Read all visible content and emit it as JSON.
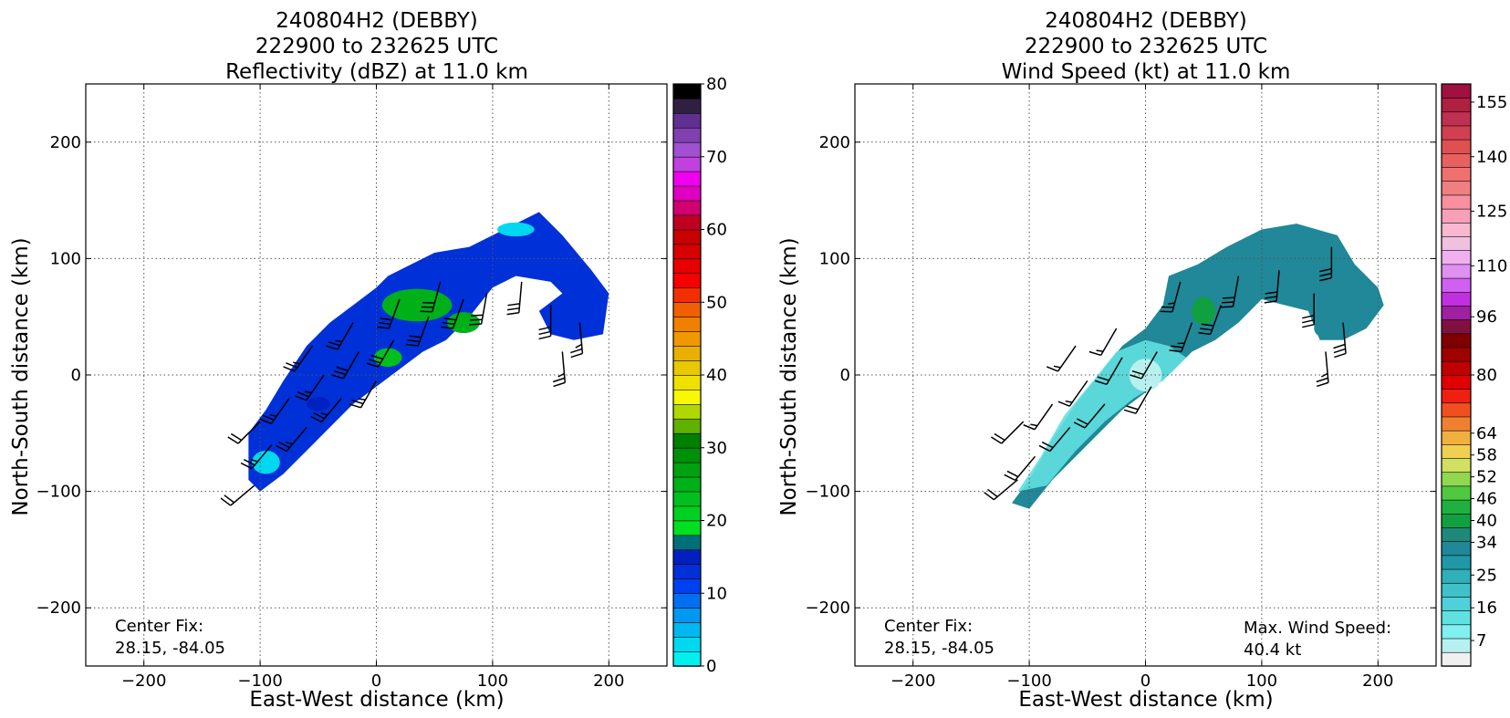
{
  "chart_data": [
    {
      "type": "heatmap",
      "title_lines": [
        "240804H2 (DEBBY)",
        "222900 to 232625 UTC",
        "Reflectivity (dBZ) at 11.0 km"
      ],
      "xlabel": "East-West distance (km)",
      "ylabel": "North-South distance (km)",
      "xlim": [
        -250,
        250
      ],
      "ylim": [
        -250,
        250
      ],
      "x_ticks": [
        -200,
        -100,
        0,
        100,
        200
      ],
      "y_ticks": [
        -200,
        -100,
        0,
        100,
        200
      ],
      "x_tick_labels": [
        "−200",
        "−100",
        "0",
        "100",
        "200"
      ],
      "y_tick_labels": [
        "−200",
        "−100",
        "0",
        "100",
        "200"
      ],
      "grid": true,
      "annotation_lines": [
        "Center Fix:",
        "28.15, -84.05"
      ],
      "colorbar": {
        "range": [
          0,
          80
        ],
        "tick_values": [
          0,
          10,
          20,
          30,
          40,
          50,
          60,
          70,
          80
        ],
        "tick_labels": [
          "0",
          "10",
          "20",
          "30",
          "40",
          "50",
          "60",
          "70",
          "80"
        ],
        "colors": [
          "#00f0f0",
          "#00d8f0",
          "#00b8f0",
          "#0098f0",
          "#0070f0",
          "#0040f0",
          "#0030d8",
          "#0020c0",
          "#007078",
          "#00e020",
          "#00d020",
          "#00c020",
          "#00b018",
          "#00a010",
          "#009008",
          "#008000",
          "#60b000",
          "#b0d800",
          "#f8f800",
          "#f0e000",
          "#e8c800",
          "#e8b000",
          "#f09800",
          "#f08000",
          "#f06000",
          "#f03000",
          "#f80000",
          "#e80000",
          "#d80000",
          "#c80000",
          "#c00020",
          "#d00070",
          "#e000c0",
          "#f000f0",
          "#c040e0",
          "#a050d0",
          "#8040b0",
          "#603090",
          "#302040",
          "#000000"
        ]
      },
      "swath": [
        {
          "x": [
            -110,
            -95,
            -80,
            -60,
            -40,
            -20,
            0,
            10,
            30,
            50,
            80,
            110,
            140,
            160,
            185,
            200,
            195,
            170,
            150,
            140,
            160,
            150,
            120,
            100,
            80,
            60,
            40,
            20,
            0,
            -20,
            -40,
            -60,
            -80,
            -100,
            -110
          ],
          "y": [
            -50,
            -30,
            -5,
            25,
            45,
            60,
            75,
            85,
            95,
            105,
            110,
            125,
            140,
            120,
            90,
            70,
            35,
            30,
            35,
            55,
            70,
            80,
            85,
            75,
            50,
            30,
            20,
            5,
            -10,
            -25,
            -45,
            -65,
            -85,
            -100,
            -90
          ]
        }
      ],
      "cells": [
        {
          "x": 35,
          "y": 60,
          "rx": 30,
          "ry": 14,
          "value": 25
        },
        {
          "x": 75,
          "y": 45,
          "rx": 14,
          "ry": 9,
          "value": 24
        },
        {
          "x": 10,
          "y": 15,
          "rx": 12,
          "ry": 8,
          "value": 22
        },
        {
          "x": -50,
          "y": -25,
          "rx": 10,
          "ry": 6,
          "value": 14
        },
        {
          "x": 120,
          "y": 125,
          "rx": 16,
          "ry": 6,
          "value": 2
        },
        {
          "x": -95,
          "y": -75,
          "rx": 12,
          "ry": 10,
          "value": 3
        }
      ],
      "barbs": [
        {
          "x": -90,
          "y": -60,
          "speed": 25,
          "dir": 220
        },
        {
          "x": -60,
          "y": -45,
          "speed": 25,
          "dir": 220
        },
        {
          "x": -30,
          "y": -20,
          "speed": 25,
          "dir": 220
        },
        {
          "x": -75,
          "y": -20,
          "speed": 25,
          "dir": 215
        },
        {
          "x": -45,
          "y": 0,
          "speed": 25,
          "dir": 215
        },
        {
          "x": -15,
          "y": 20,
          "speed": 30,
          "dir": 210
        },
        {
          "x": 15,
          "y": 30,
          "speed": 30,
          "dir": 210
        },
        {
          "x": 45,
          "y": 50,
          "speed": 30,
          "dir": 200
        },
        {
          "x": 75,
          "y": 65,
          "speed": 30,
          "dir": 200
        },
        {
          "x": -55,
          "y": 25,
          "speed": 25,
          "dir": 215
        },
        {
          "x": -20,
          "y": 45,
          "speed": 25,
          "dir": 210
        },
        {
          "x": 20,
          "y": 65,
          "speed": 30,
          "dir": 200
        },
        {
          "x": 55,
          "y": 80,
          "speed": 30,
          "dir": 195
        },
        {
          "x": 95,
          "y": 70,
          "speed": 30,
          "dir": 190
        },
        {
          "x": 125,
          "y": 80,
          "speed": 30,
          "dir": 185
        },
        {
          "x": 150,
          "y": 60,
          "speed": 30,
          "dir": 180
        },
        {
          "x": 175,
          "y": 45,
          "speed": 25,
          "dir": 175
        },
        {
          "x": 160,
          "y": 20,
          "speed": 25,
          "dir": 175
        },
        {
          "x": -105,
          "y": -95,
          "speed": 20,
          "dir": 230
        },
        {
          "x": -100,
          "y": -40,
          "speed": 20,
          "dir": 225
        },
        {
          "x": 0,
          "y": -5,
          "speed": 25,
          "dir": 210
        }
      ]
    },
    {
      "type": "heatmap",
      "title_lines": [
        "240804H2 (DEBBY)",
        "222900 to 232625 UTC",
        "Wind Speed (kt) at 11.0 km"
      ],
      "xlabel": "East-West distance (km)",
      "ylabel": "North-South distance (km)",
      "xlim": [
        -250,
        250
      ],
      "ylim": [
        -250,
        250
      ],
      "x_ticks": [
        -200,
        -100,
        0,
        100,
        200
      ],
      "y_ticks": [
        -200,
        -100,
        0,
        100,
        200
      ],
      "x_tick_labels": [
        "−200",
        "−100",
        "0",
        "100",
        "200"
      ],
      "y_tick_labels": [
        "−200",
        "−100",
        "0",
        "100",
        "200"
      ],
      "grid": true,
      "annotation_lines": [
        "Center Fix:",
        "28.15, -84.05"
      ],
      "max_wind_lines": [
        "Max. Wind Speed:",
        "40.4 kt"
      ],
      "colorbar": {
        "range": [
          0,
          160
        ],
        "tick_values": [
          7,
          16,
          25,
          34,
          40,
          46,
          52,
          58,
          64,
          80,
          96,
          110,
          125,
          140,
          155
        ],
        "tick_labels": [
          "7",
          "16",
          "25",
          "34",
          "40",
          "46",
          "52",
          "58",
          "64",
          "80",
          "96",
          "110",
          "125",
          "140",
          "155"
        ],
        "colors": [
          "#f0f0f0",
          "#b8f0f0",
          "#80f0f0",
          "#60e0e0",
          "#50d0d8",
          "#40c0c8",
          "#30b0b8",
          "#2098a8",
          "#208898",
          "#208878",
          "#10a040",
          "#20b040",
          "#50c840",
          "#90d850",
          "#d0e060",
          "#f0d050",
          "#f0b040",
          "#f08030",
          "#f05020",
          "#f02010",
          "#e00000",
          "#c00000",
          "#a00000",
          "#800000",
          "#801040",
          "#a020a0",
          "#c030e0",
          "#d060f0",
          "#e090f0",
          "#f0b0f0",
          "#f0c0e0",
          "#f8b8d0",
          "#f8a0b8",
          "#f890a0",
          "#f08080",
          "#f07070",
          "#e86060",
          "#e05050",
          "#d04050",
          "#c03050",
          "#b02040",
          "#a01040"
        ]
      },
      "swath": [
        {
          "x": -115,
          "y": [
            -110,
            -115
          ]
        }
      ],
      "swath_poly": [
        {
          "x": -115,
          "y": -110
        },
        {
          "x": -100,
          "y": -90
        },
        {
          "x": -80,
          "y": -55
        },
        {
          "x": -60,
          "y": -25
        },
        {
          "x": -40,
          "y": 0
        },
        {
          "x": -20,
          "y": 25
        },
        {
          "x": 0,
          "y": 40
        },
        {
          "x": 15,
          "y": 60
        },
        {
          "x": 20,
          "y": 85
        },
        {
          "x": 45,
          "y": 95
        },
        {
          "x": 70,
          "y": 110
        },
        {
          "x": 100,
          "y": 125
        },
        {
          "x": 130,
          "y": 130
        },
        {
          "x": 165,
          "y": 120
        },
        {
          "x": 180,
          "y": 95
        },
        {
          "x": 200,
          "y": 75
        },
        {
          "x": 205,
          "y": 60
        },
        {
          "x": 190,
          "y": 40
        },
        {
          "x": 170,
          "y": 30
        },
        {
          "x": 150,
          "y": 30
        },
        {
          "x": 140,
          "y": 55
        },
        {
          "x": 120,
          "y": 60
        },
        {
          "x": 100,
          "y": 65
        },
        {
          "x": 80,
          "y": 45
        },
        {
          "x": 60,
          "y": 30
        },
        {
          "x": 40,
          "y": 20
        },
        {
          "x": 20,
          "y": 0
        },
        {
          "x": 0,
          "y": -15
        },
        {
          "x": -20,
          "y": -30
        },
        {
          "x": -40,
          "y": -50
        },
        {
          "x": -60,
          "y": -70
        },
        {
          "x": -80,
          "y": -90
        },
        {
          "x": -100,
          "y": -115
        }
      ],
      "inner_region": [
        {
          "x": -110,
          "y": -100
        },
        {
          "x": -90,
          "y": -70
        },
        {
          "x": -70,
          "y": -35
        },
        {
          "x": -45,
          "y": -5
        },
        {
          "x": -25,
          "y": 20
        },
        {
          "x": 0,
          "y": 30
        },
        {
          "x": 20,
          "y": 25
        },
        {
          "x": 35,
          "y": 15
        },
        {
          "x": 15,
          "y": -5
        },
        {
          "x": -10,
          "y": -20
        },
        {
          "x": -35,
          "y": -40
        },
        {
          "x": -60,
          "y": -65
        },
        {
          "x": -85,
          "y": -95
        }
      ],
      "cells": [
        {
          "x": 0,
          "y": 0,
          "rx": 14,
          "ry": 14,
          "value": 4
        },
        {
          "x": 50,
          "y": 55,
          "rx": 10,
          "ry": 12,
          "value": 40
        },
        {
          "x": 165,
          "y": 90,
          "rx": 8,
          "ry": 10,
          "value": 34
        },
        {
          "x": 155,
          "y": 40,
          "rx": 10,
          "ry": 8,
          "value": 32
        }
      ],
      "barbs": [
        {
          "x": -95,
          "y": -70,
          "speed": 20,
          "dir": 220
        },
        {
          "x": -65,
          "y": -45,
          "speed": 20,
          "dir": 220
        },
        {
          "x": -35,
          "y": -25,
          "speed": 20,
          "dir": 220
        },
        {
          "x": -80,
          "y": -25,
          "speed": 15,
          "dir": 215
        },
        {
          "x": -50,
          "y": -5,
          "speed": 15,
          "dir": 215
        },
        {
          "x": -20,
          "y": 15,
          "speed": 20,
          "dir": 210
        },
        {
          "x": 10,
          "y": 20,
          "speed": 20,
          "dir": 210
        },
        {
          "x": 40,
          "y": 45,
          "speed": 25,
          "dir": 200
        },
        {
          "x": 65,
          "y": 60,
          "speed": 30,
          "dir": 200
        },
        {
          "x": -60,
          "y": 25,
          "speed": 15,
          "dir": 215
        },
        {
          "x": -25,
          "y": 40,
          "speed": 15,
          "dir": 210
        },
        {
          "x": 30,
          "y": 80,
          "speed": 25,
          "dir": 195
        },
        {
          "x": 80,
          "y": 85,
          "speed": 30,
          "dir": 190
        },
        {
          "x": 115,
          "y": 90,
          "speed": 30,
          "dir": 185
        },
        {
          "x": 145,
          "y": 70,
          "speed": 30,
          "dir": 180
        },
        {
          "x": 170,
          "y": 45,
          "speed": 30,
          "dir": 175
        },
        {
          "x": 155,
          "y": 20,
          "speed": 25,
          "dir": 175
        },
        {
          "x": -110,
          "y": -90,
          "speed": 20,
          "dir": 230
        },
        {
          "x": -105,
          "y": -40,
          "speed": 20,
          "dir": 225
        },
        {
          "x": 5,
          "y": -10,
          "speed": 20,
          "dir": 210
        },
        {
          "x": 160,
          "y": 110,
          "speed": 30,
          "dir": 180
        }
      ]
    }
  ]
}
